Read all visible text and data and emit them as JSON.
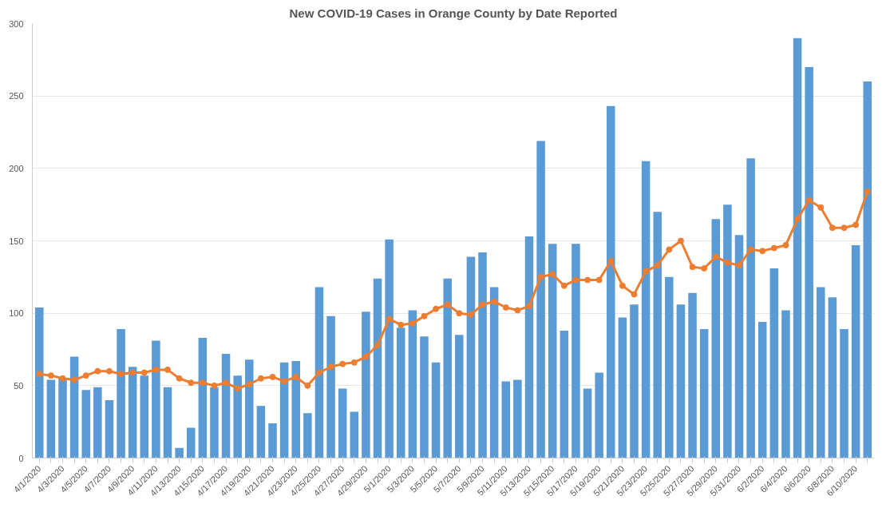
{
  "chart_data": {
    "type": "bar",
    "title": "New COVID-19 Cases in Orange County by Date Reported",
    "categories": [
      "4/1/2020",
      null,
      "4/3/2020",
      null,
      "4/5/2020",
      null,
      "4/7/2020",
      null,
      "4/9/2020",
      null,
      "4/11/2020",
      null,
      "4/13/2020",
      null,
      "4/15/2020",
      null,
      "4/17/2020",
      null,
      "4/19/2020",
      null,
      "4/21/2020",
      null,
      "4/23/2020",
      null,
      "4/25/2020",
      null,
      "4/27/2020",
      null,
      "4/29/2020",
      null,
      "5/1/2020",
      null,
      "5/3/2020",
      null,
      "5/5/2020",
      null,
      "5/7/2020",
      null,
      "5/9/2020",
      null,
      "5/11/2020",
      null,
      "5/13/2020",
      null,
      "5/15/2020",
      null,
      "5/17/2020",
      null,
      "5/19/2020",
      null,
      "5/21/2020",
      null,
      "5/23/2020",
      null,
      "5/25/2020",
      null,
      "5/27/2020",
      null,
      "5/29/2020",
      null,
      "5/31/2020",
      null,
      "6/2/2020",
      null,
      "6/4/2020",
      null,
      "6/6/2020",
      null,
      "6/8/2020",
      null,
      "6/10/2020",
      null
    ],
    "series": [
      {
        "color": "#5b9bd5",
        "values": [
          104,
          54,
          55,
          70,
          47,
          49,
          40,
          89,
          63,
          57,
          81,
          49,
          7,
          21,
          83,
          49,
          72,
          57,
          68,
          36,
          24,
          66,
          67,
          31,
          118,
          98,
          48,
          32,
          101,
          124,
          151,
          90,
          102,
          84,
          66,
          124,
          85,
          139,
          142,
          118,
          53,
          54,
          153,
          219,
          148,
          88,
          148,
          48,
          59,
          243,
          97,
          106,
          205,
          170,
          125,
          106,
          114,
          89,
          165,
          175,
          154,
          207,
          94,
          131,
          102,
          290,
          270,
          118,
          111,
          89,
          147,
          260
        ]
      },
      {
        "type": "line",
        "color": "#ed7d31",
        "marker": "circle",
        "values": [
          58,
          57,
          55,
          54,
          57,
          60,
          60,
          58,
          59,
          59,
          61,
          61,
          55,
          52,
          52,
          50,
          52,
          48,
          51,
          55,
          56,
          53,
          56,
          50,
          59,
          63,
          65,
          66,
          70,
          78,
          96,
          92,
          93,
          98,
          103,
          106,
          100,
          99,
          106,
          108,
          104,
          102,
          105,
          125,
          127,
          119,
          123,
          123,
          123,
          136,
          119,
          113,
          129,
          133,
          144,
          150,
          132,
          131,
          139,
          135,
          133,
          144,
          143,
          145,
          147,
          165,
          178,
          173,
          159,
          159,
          161,
          184
        ]
      }
    ],
    "ylim": [
      0,
      300
    ],
    "yticks": [
      0,
      50,
      100,
      150,
      200,
      250,
      300
    ],
    "grid": "y"
  }
}
